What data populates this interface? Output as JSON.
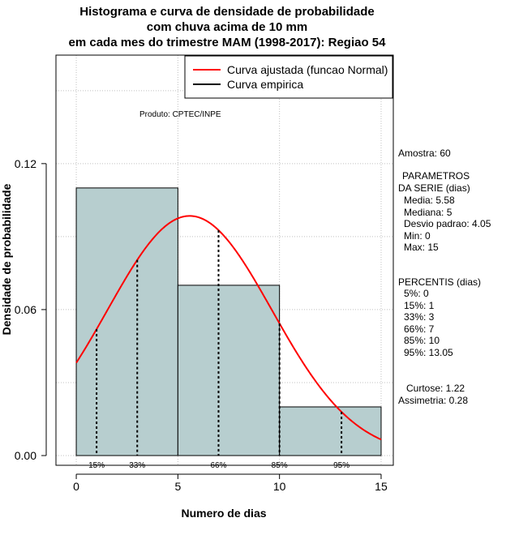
{
  "title_lines": [
    "Histograma e curva de densidade de probabilidade",
    "com chuva acima de 10 mm",
    "em cada mes do trimestre MAM (1998-2017): Regiao 54"
  ],
  "chart_data": {
    "type": "bar",
    "subtype": "histogram_with_density",
    "xlabel": "Numero de dias",
    "ylabel": "Densidade de probabilidade",
    "xlim": [
      -1,
      15.6
    ],
    "ylim": [
      -0.004,
      0.1646
    ],
    "x_ticks": [
      0,
      5,
      10,
      15
    ],
    "y_ticks": [
      0.0,
      0.06,
      0.12
    ],
    "y_tick_labels": [
      "0.00",
      "0.06",
      "0.12"
    ],
    "grid": true,
    "bins": [
      {
        "from": 0,
        "to": 5,
        "density": 0.11
      },
      {
        "from": 5,
        "to": 10,
        "density": 0.07
      },
      {
        "from": 10,
        "to": 15,
        "density": 0.02
      }
    ],
    "normal_fit": {
      "mean": 5.58,
      "sd": 4.05,
      "x_from": 0,
      "x_to": 15
    },
    "percentile_lines": [
      {
        "label": "15%",
        "x": 1
      },
      {
        "label": "33%",
        "x": 3
      },
      {
        "label": "66%",
        "x": 7
      },
      {
        "label": "85%",
        "x": 10
      },
      {
        "label": "95%",
        "x": 13.05
      }
    ],
    "legend": {
      "position": "top-right",
      "entries": [
        {
          "label": "Curva ajustada (funcao Normal)",
          "color": "#ff0000"
        },
        {
          "label": "Curva empirica",
          "color": "#000000"
        }
      ]
    },
    "annotation": "Produto: CPTEC/INPE",
    "colors": {
      "bar_fill": "#b7cecf",
      "density_line": "#ff0000",
      "grid": "#c0c0c0"
    }
  },
  "stats_panel": {
    "sample": "Amostra: 60",
    "params_title": "PARAMETROS",
    "params_subtitle": "DA SERIE (dias)",
    "params": [
      "Media: 5.58",
      "Mediana: 5",
      "Desvio padrao: 4.05",
      "Min: 0",
      "Max: 15"
    ],
    "percentis_title": "PERCENTIS (dias)",
    "percentis": [
      "5%: 0",
      "15%: 1",
      "33%: 3",
      "66%: 7",
      "85%: 10",
      "95%: 13.05"
    ],
    "curtose": "Curtose: 1.22",
    "assimetria": "Assimetria: 0.28"
  }
}
